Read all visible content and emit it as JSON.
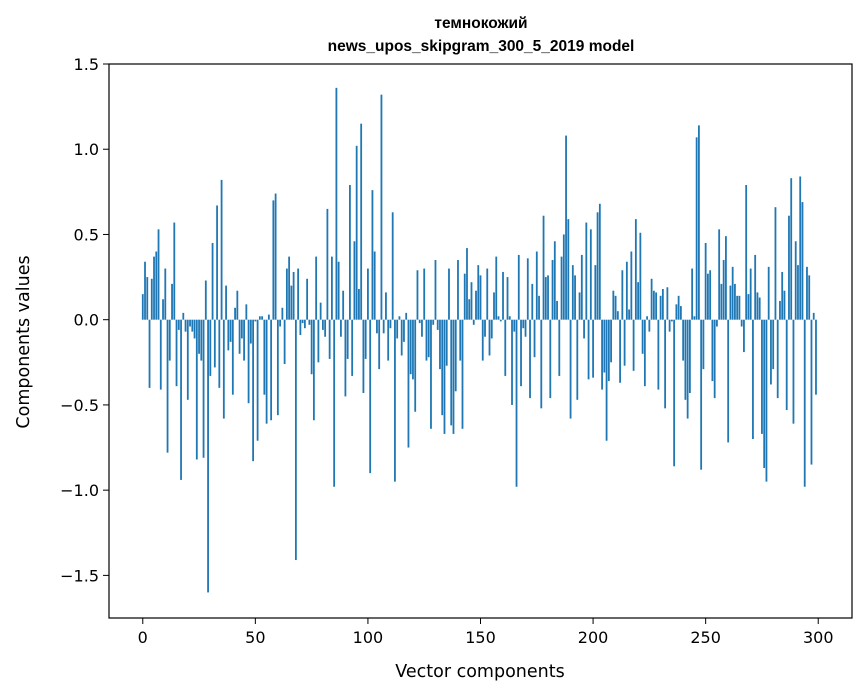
{
  "chart_data": {
    "type": "bar",
    "title_line1": "темнокожий",
    "title_line2": "news_upos_skipgram_300_5_2019 model",
    "xlabel": "Vector components",
    "ylabel": "Components values",
    "xlim": [
      -15,
      315
    ],
    "ylim": [
      -1.75,
      1.5
    ],
    "xticks": [
      0,
      50,
      100,
      150,
      200,
      250,
      300
    ],
    "xtick_labels": [
      "0",
      "50",
      "100",
      "150",
      "200",
      "250",
      "300"
    ],
    "yticks": [
      -1.5,
      -1.0,
      -0.5,
      0.0,
      0.5,
      1.0,
      1.5
    ],
    "ytick_labels": [
      "−1.5",
      "−1.0",
      "−0.5",
      "0.0",
      "0.5",
      "1.0",
      "1.5"
    ],
    "bar_color": "#1f77b4",
    "values": [
      0.15,
      0.34,
      0.25,
      -0.4,
      0.24,
      0.37,
      0.4,
      0.53,
      -0.41,
      0.12,
      0.3,
      -0.78,
      -0.24,
      0.21,
      0.57,
      -0.39,
      -0.06,
      -0.94,
      0.04,
      -0.07,
      -0.47,
      -0.04,
      -0.07,
      -0.11,
      -0.82,
      -0.2,
      -0.24,
      -0.81,
      0.23,
      -1.6,
      -0.33,
      0.45,
      -0.28,
      0.67,
      -0.4,
      0.82,
      -0.58,
      0.2,
      -0.18,
      -0.13,
      -0.44,
      0.07,
      0.17,
      -0.2,
      -0.11,
      -0.24,
      0.09,
      -0.49,
      -0.14,
      -0.83,
      -0.01,
      -0.71,
      0.02,
      0.02,
      -0.44,
      -0.61,
      0.03,
      -0.59,
      0.7,
      0.74,
      -0.56,
      -0.04,
      0.07,
      -0.26,
      0.3,
      0.37,
      0.2,
      0.28,
      -1.41,
      0.3,
      -0.09,
      -0.02,
      -0.05,
      0.24,
      -0.03,
      -0.32,
      -0.59,
      0.37,
      -0.25,
      0.1,
      -0.06,
      -0.1,
      0.65,
      -0.23,
      0.37,
      -0.98,
      1.36,
      0.34,
      -0.1,
      0.17,
      -0.45,
      -0.23,
      0.79,
      -0.33,
      0.46,
      1.02,
      0.18,
      1.15,
      -0.43,
      -0.23,
      0.3,
      -0.9,
      0.76,
      0.4,
      -0.08,
      -0.29,
      1.32,
      -0.08,
      0.16,
      -0.24,
      -0.05,
      0.63,
      -0.95,
      -0.11,
      0.02,
      -0.21,
      -0.13,
      0.04,
      -0.75,
      -0.32,
      -0.35,
      -0.54,
      0.29,
      -0.02,
      -0.1,
      0.3,
      -0.24,
      -0.22,
      -0.64,
      -0.03,
      0.35,
      -0.06,
      -0.29,
      -0.56,
      -0.67,
      -0.27,
      0.3,
      -0.62,
      -0.67,
      -0.42,
      0.35,
      -0.24,
      -0.64,
      0.27,
      0.42,
      0.12,
      0.22,
      -0.03,
      0.17,
      0.32,
      0.26,
      -0.24,
      -0.1,
      0.3,
      -0.21,
      -0.11,
      0.16,
      0.37,
      0.02,
      -0.01,
      0.28,
      -0.33,
      0.25,
      0.02,
      -0.5,
      -0.07,
      -0.98,
      0.38,
      -0.39,
      -0.05,
      -0.1,
      0.36,
      -0.46,
      0.21,
      -0.22,
      0.4,
      0.14,
      -0.52,
      0.61,
      0.25,
      0.26,
      -0.46,
      0.35,
      0.46,
      0.11,
      -0.33,
      0.37,
      0.5,
      1.08,
      0.59,
      -0.58,
      0.32,
      0.26,
      -0.47,
      0.16,
      0.38,
      -0.11,
      0.57,
      -0.35,
      0.53,
      -0.34,
      0.32,
      0.63,
      0.68,
      -0.41,
      -0.31,
      -0.71,
      -0.36,
      -0.25,
      0.17,
      0.14,
      0.05,
      -0.37,
      0.29,
      -0.27,
      0.34,
      0.06,
      0.4,
      -0.3,
      0.59,
      0.22,
      0.51,
      -0.2,
      -0.39,
      0.02,
      -0.07,
      0.24,
      0.17,
      0.16,
      -0.41,
      0.14,
      0.18,
      -0.52,
      0.19,
      -0.07,
      -0.01,
      -0.86,
      0.09,
      0.14,
      0.08,
      -0.24,
      -0.47,
      -0.58,
      -0.43,
      0.3,
      0.02,
      1.07,
      1.14,
      -0.88,
      -0.29,
      0.45,
      0.27,
      0.29,
      -0.36,
      -0.46,
      -0.04,
      0.53,
      0.21,
      0.35,
      0.49,
      -0.72,
      0.2,
      0.31,
      0.21,
      0.14,
      0.14,
      -0.04,
      -0.19,
      0.79,
      0.15,
      0.3,
      -0.7,
      0.38,
      0.16,
      0.13,
      -0.67,
      -0.87,
      -0.95,
      0.31,
      -0.38,
      -0.29,
      0.66,
      -0.46,
      0.11,
      0.28,
      0.17,
      -0.53,
      0.61,
      0.83,
      -0.61,
      0.46,
      0.32,
      0.84,
      0.69,
      -0.98,
      0.31,
      0.26,
      -0.85,
      0.04,
      -0.44
    ]
  }
}
